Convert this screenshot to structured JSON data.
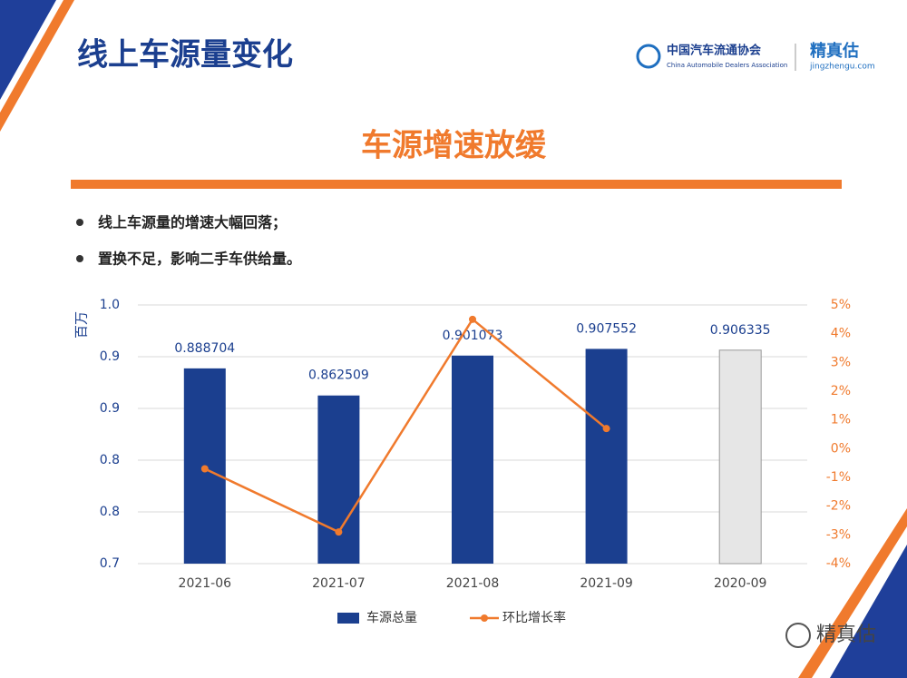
{
  "header": {
    "title": "线上车源量变化",
    "org_cn": "中国汽车流通协会",
    "org_en": "China Automobile Dealers Association",
    "brand": "精真估",
    "brand_url": "jingzhengu.com"
  },
  "subtitle": "车源增速放缓",
  "bullets": [
    "线上车源量的增速大幅回落；",
    "置换不足，影响二手车供给量。"
  ],
  "chart_data": {
    "type": "bar",
    "ylabel": "百万",
    "categories": [
      "2021-06",
      "2021-07",
      "2021-08",
      "2021-09",
      "2020-09"
    ],
    "series": [
      {
        "name": "车源总量",
        "type": "bar",
        "color": "#1b3f8f",
        "colors": [
          "#1b3f8f",
          "#1b3f8f",
          "#1b3f8f",
          "#1b3f8f",
          "#e6e6e6"
        ],
        "values": [
          0.888704,
          0.862509,
          0.901073,
          0.907552,
          0.906335
        ]
      },
      {
        "name": "环比增长率",
        "type": "line",
        "axis": "y2",
        "color": "#f07a2d",
        "values": [
          -0.7,
          -2.9,
          4.5,
          0.7,
          null
        ]
      }
    ],
    "ylim": [
      0.7,
      0.95
    ],
    "yticks": [
      {
        "value": 0.7,
        "label": "0.7"
      },
      {
        "value": 0.75,
        "label": "0.8"
      },
      {
        "value": 0.8,
        "label": "0.8"
      },
      {
        "value": 0.85,
        "label": "0.9"
      },
      {
        "value": 0.9,
        "label": "0.9"
      },
      {
        "value": 0.95,
        "label": "1.0"
      }
    ],
    "y2lim": [
      -4,
      5
    ],
    "y2ticks": [
      {
        "value": -4,
        "label": "-4%"
      },
      {
        "value": -3,
        "label": "-3%"
      },
      {
        "value": -2,
        "label": "-2%"
      },
      {
        "value": -1,
        "label": "-1%"
      },
      {
        "value": 0,
        "label": "0%"
      },
      {
        "value": 1,
        "label": "1%"
      },
      {
        "value": 2,
        "label": "2%"
      },
      {
        "value": 3,
        "label": "3%"
      },
      {
        "value": 4,
        "label": "4%"
      },
      {
        "value": 5,
        "label": "5%"
      }
    ],
    "grid": true
  },
  "watermark": "精真估"
}
